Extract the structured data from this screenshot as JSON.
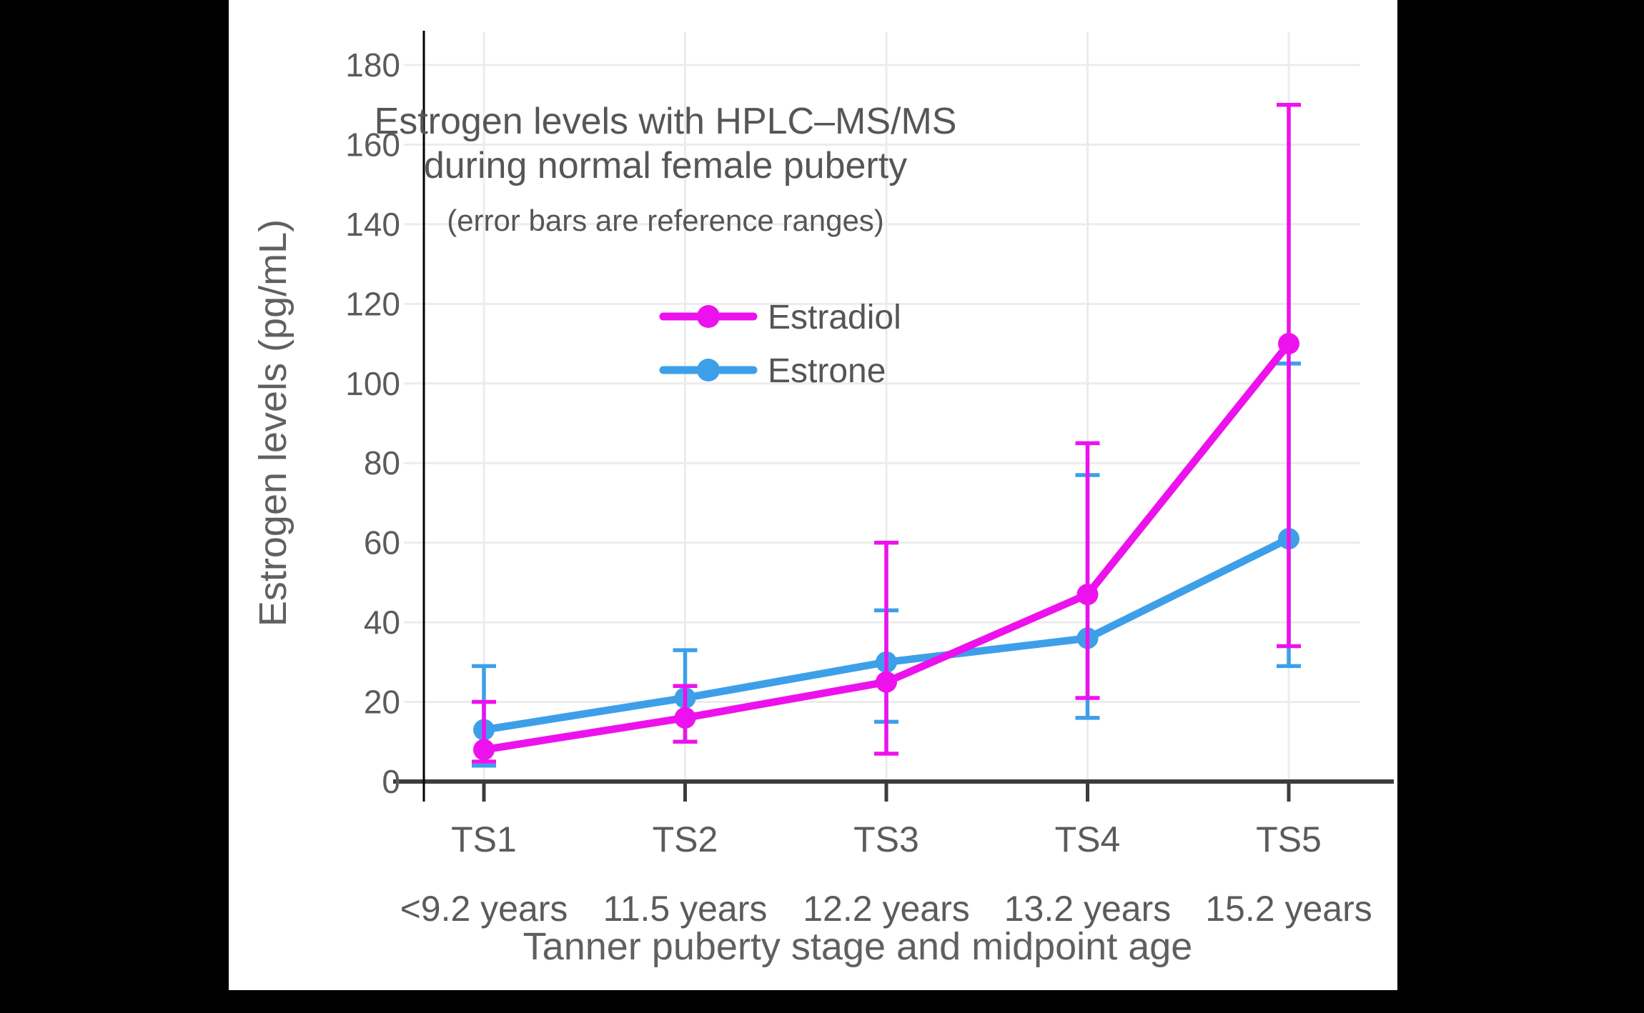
{
  "figure": {
    "title_line1": "Estrogen levels with HPLC–MS/MS",
    "title_line2": "during normal female puberty",
    "subtitle": "(error bars are reference ranges)"
  },
  "axes": {
    "y_title": "Estrogen levels (pg/mL)",
    "x_title": "Tanner puberty stage and midpoint age",
    "y_ticks": [
      0,
      20,
      40,
      60,
      80,
      100,
      120,
      140,
      160,
      180
    ],
    "x_categories": [
      {
        "stage": "TS1",
        "age": "<9.2 years"
      },
      {
        "stage": "TS2",
        "age": "11.5 years"
      },
      {
        "stage": "TS3",
        "age": "12.2 years"
      },
      {
        "stage": "TS4",
        "age": "13.2 years"
      },
      {
        "stage": "TS5",
        "age": "15.2 years"
      }
    ]
  },
  "legend": {
    "items": [
      {
        "label": "Estradiol",
        "color": "#ED12ED"
      },
      {
        "label": "Estrone",
        "color": "#3E9FE9"
      }
    ]
  },
  "colors": {
    "estradiol": "#ED12ED",
    "estrone": "#3E9FE9",
    "grid": "#ECECEC",
    "x_axis_line": "#3C3C3C",
    "y_axis_line": "#000000",
    "tick_text": "#5B5B5B"
  },
  "chart_data": {
    "type": "line",
    "title": "Estrogen levels with HPLC–MS/MS during normal female puberty",
    "subtitle": "(error bars are reference ranges)",
    "xlabel": "Tanner puberty stage and midpoint age",
    "ylabel": "Estrogen levels (pg/mL)",
    "ylim": [
      0,
      180
    ],
    "y_tick_interval": 20,
    "grid": true,
    "legend_position": "inside upper area, left of center",
    "error_bar_meaning": "reference ranges",
    "categories": [
      "TS1",
      "TS2",
      "TS3",
      "TS4",
      "TS5"
    ],
    "category_ages": [
      "<9.2 years",
      "11.5 years",
      "12.2 years",
      "13.2 years",
      "15.2 years"
    ],
    "units": "pg/mL",
    "series": [
      {
        "name": "Estradiol",
        "color": "#ED12ED",
        "values": [
          8,
          16,
          25,
          47,
          110
        ],
        "range_low": [
          5,
          10,
          7,
          21,
          34
        ],
        "range_high": [
          20,
          24,
          60,
          85,
          170
        ]
      },
      {
        "name": "Estrone",
        "color": "#3E9FE9",
        "values": [
          13,
          21,
          30,
          36,
          61
        ],
        "range_low": [
          4,
          10,
          15,
          16,
          29
        ],
        "range_high": [
          29,
          33,
          43,
          77,
          105
        ]
      }
    ]
  }
}
